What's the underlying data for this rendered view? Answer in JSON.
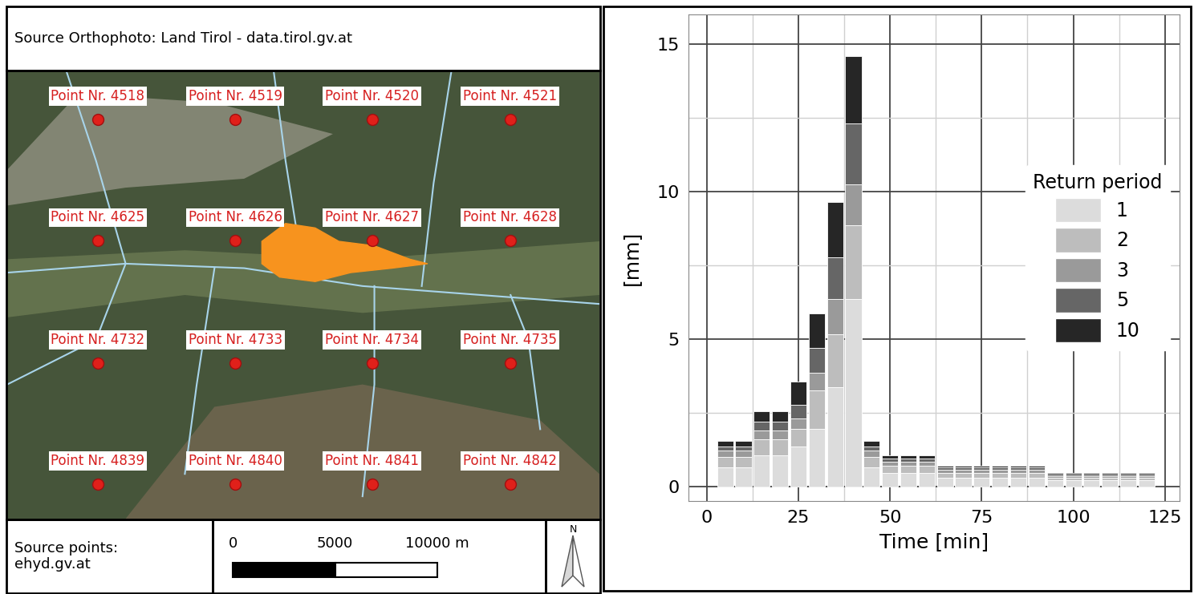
{
  "map": {
    "header": "Source Orthophoto: Land Tirol - data.tirol.gv.at",
    "points": [
      [
        "Point Nr. 4518",
        "Point Nr. 4519",
        "Point Nr. 4520",
        "Point Nr. 4521"
      ],
      [
        "Point Nr. 4625",
        "Point Nr. 4626",
        "Point Nr. 4627",
        "Point Nr. 4628"
      ],
      [
        "Point Nr. 4732",
        "Point Nr. 4733",
        "Point Nr. 4734",
        "Point Nr. 4735"
      ],
      [
        "Point Nr. 4839",
        "Point Nr. 4840",
        "Point Nr. 4841",
        "Point Nr. 4842"
      ]
    ],
    "source_note": "Source points:\nehyd.gv.at",
    "scale_bar": {
      "ticks": [
        0,
        5000,
        {
          "value": 10000,
          "label": "10000 m"
        }
      ]
    },
    "north_arrow": "N"
  },
  "chart_data": {
    "type": "bar",
    "stacked": true,
    "x_label": "Time [min]",
    "y_label": "[mm]",
    "legend_title": "Return period",
    "legend": "right",
    "grid": true,
    "x": [
      5,
      10,
      15,
      20,
      25,
      30,
      35,
      40,
      45,
      50,
      55,
      60,
      65,
      70,
      75,
      80,
      85,
      90,
      95,
      100,
      105,
      110,
      115,
      120
    ],
    "series": [
      {
        "name": "1",
        "color": "#dcdcdc",
        "values": [
          0.65,
          0.65,
          1.05,
          1.05,
          1.35,
          1.95,
          3.35,
          6.35,
          0.65,
          0.45,
          0.45,
          0.45,
          0.3,
          0.3,
          0.3,
          0.3,
          0.3,
          0.3,
          0.2,
          0.2,
          0.2,
          0.2,
          0.2,
          0.2
        ]
      },
      {
        "name": "2",
        "color": "#bdbdbd",
        "values": [
          0.35,
          0.35,
          0.55,
          0.55,
          0.6,
          1.3,
          1.8,
          2.5,
          0.35,
          0.25,
          0.25,
          0.25,
          0.15,
          0.15,
          0.15,
          0.15,
          0.15,
          0.15,
          0.1,
          0.1,
          0.1,
          0.1,
          0.1,
          0.1
        ]
      },
      {
        "name": "3",
        "color": "#9a9a9a",
        "values": [
          0.2,
          0.2,
          0.3,
          0.3,
          0.35,
          0.6,
          1.2,
          1.4,
          0.2,
          0.12,
          0.12,
          0.12,
          0.1,
          0.1,
          0.1,
          0.1,
          0.1,
          0.1,
          0.05,
          0.05,
          0.05,
          0.05,
          0.05,
          0.05
        ]
      },
      {
        "name": "5",
        "color": "#666666",
        "values": [
          0.15,
          0.15,
          0.3,
          0.3,
          0.45,
          0.85,
          1.4,
          2.05,
          0.15,
          0.12,
          0.12,
          0.12,
          0.08,
          0.08,
          0.08,
          0.08,
          0.08,
          0.08,
          0.05,
          0.05,
          0.05,
          0.05,
          0.05,
          0.05
        ]
      },
      {
        "name": "10",
        "color": "#262626",
        "values": [
          0.2,
          0.2,
          0.35,
          0.35,
          0.8,
          1.15,
          1.9,
          2.3,
          0.2,
          0.11,
          0.11,
          0.11,
          0.07,
          0.07,
          0.07,
          0.07,
          0.07,
          0.07,
          0.05,
          0.05,
          0.05,
          0.05,
          0.05,
          0.05
        ]
      }
    ],
    "xlim": [
      -5,
      129
    ],
    "xticks": [
      0,
      25,
      50,
      75,
      100,
      125
    ],
    "ylim": [
      -0.5,
      16
    ],
    "yticks": [
      0,
      5,
      10,
      15
    ]
  }
}
